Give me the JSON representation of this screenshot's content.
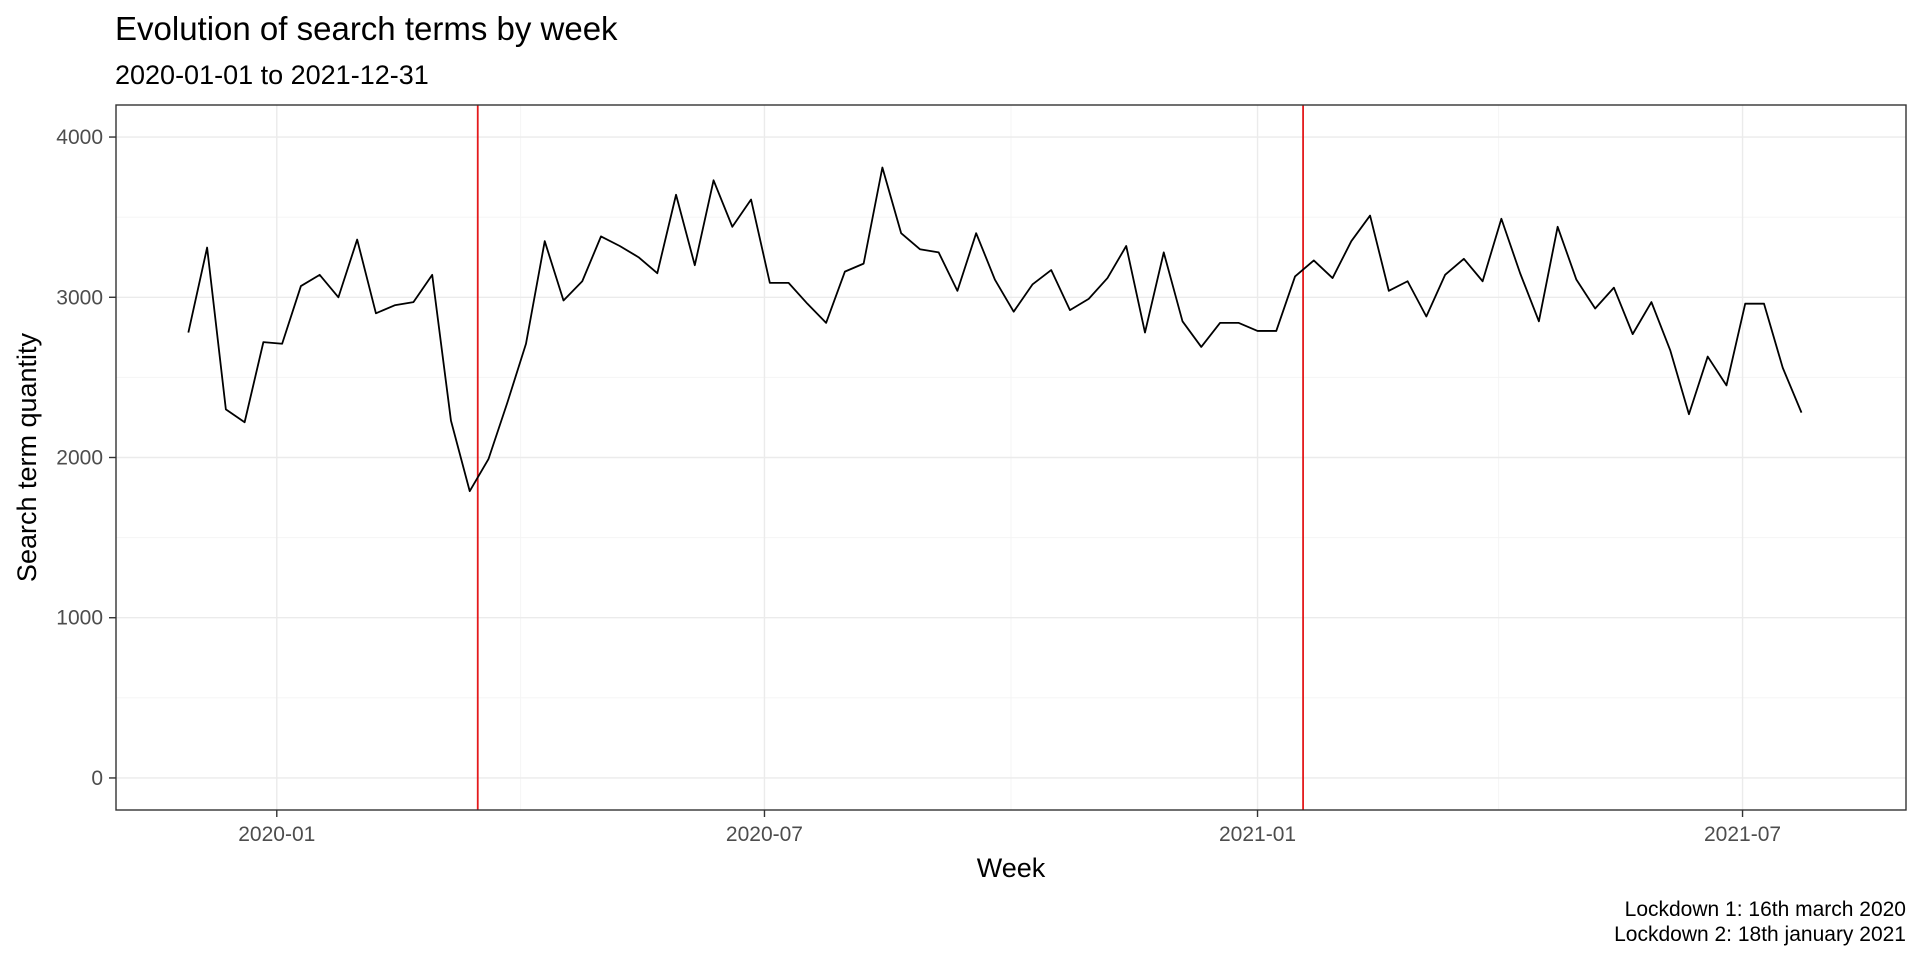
{
  "chart_data": {
    "type": "line",
    "title": "Evolution of search terms by week",
    "subtitle": "2020-01-01 to 2021-12-31",
    "xlabel": "Week",
    "ylabel": "Search term quantity",
    "caption": [
      "Lockdown 1: 16th march 2020",
      "Lockdown 2: 18th january 2021"
    ],
    "xlim": [
      "2019-11-02",
      "2021-08-31"
    ],
    "ylim": [
      -200,
      4200
    ],
    "x_ticks": [
      {
        "value": "2020-01-01",
        "label": "2020-01"
      },
      {
        "value": "2020-07-01",
        "label": "2020-07"
      },
      {
        "value": "2021-01-01",
        "label": "2021-01"
      },
      {
        "value": "2021-07-01",
        "label": "2021-07"
      }
    ],
    "x_minor_ticks": [
      "2020-04-01",
      "2020-10-01",
      "2021-04-01"
    ],
    "y_ticks": [
      {
        "value": 0,
        "label": "0"
      },
      {
        "value": 1000,
        "label": "1000"
      },
      {
        "value": 2000,
        "label": "2000"
      },
      {
        "value": 3000,
        "label": "3000"
      },
      {
        "value": 4000,
        "label": "4000"
      }
    ],
    "y_minor_ticks": [
      500,
      1500,
      2500,
      3500
    ],
    "grid": true,
    "reference_lines": [
      {
        "x": "2020-03-16",
        "color": "#e41a1c"
      },
      {
        "x": "2021-01-18",
        "color": "#e41a1c"
      }
    ],
    "series": [
      {
        "color": "#000000",
        "points": [
          [
            "2019-11-29",
            2780
          ],
          [
            "2019-12-06",
            3310
          ],
          [
            "2019-12-13",
            2300
          ],
          [
            "2019-12-20",
            2220
          ],
          [
            "2019-12-27",
            2720
          ],
          [
            "2020-01-03",
            2710
          ],
          [
            "2020-01-10",
            3070
          ],
          [
            "2020-01-17",
            3140
          ],
          [
            "2020-01-24",
            3000
          ],
          [
            "2020-01-31",
            3360
          ],
          [
            "2020-02-07",
            2900
          ],
          [
            "2020-02-14",
            2950
          ],
          [
            "2020-02-21",
            2970
          ],
          [
            "2020-02-28",
            3140
          ],
          [
            "2020-03-06",
            2230
          ],
          [
            "2020-03-13",
            1790
          ],
          [
            "2020-03-20",
            1990
          ],
          [
            "2020-03-27",
            2340
          ],
          [
            "2020-04-03",
            2710
          ],
          [
            "2020-04-10",
            3350
          ],
          [
            "2020-04-17",
            2980
          ],
          [
            "2020-04-24",
            3100
          ],
          [
            "2020-05-01",
            3380
          ],
          [
            "2020-05-08",
            3320
          ],
          [
            "2020-05-15",
            3250
          ],
          [
            "2020-05-22",
            3150
          ],
          [
            "2020-05-29",
            3640
          ],
          [
            "2020-06-05",
            3200
          ],
          [
            "2020-06-12",
            3730
          ],
          [
            "2020-06-19",
            3440
          ],
          [
            "2020-06-26",
            3610
          ],
          [
            "2020-07-03",
            3090
          ],
          [
            "2020-07-10",
            3090
          ],
          [
            "2020-07-17",
            2960
          ],
          [
            "2020-07-24",
            2840
          ],
          [
            "2020-07-31",
            3160
          ],
          [
            "2020-08-07",
            3210
          ],
          [
            "2020-08-14",
            3810
          ],
          [
            "2020-08-21",
            3400
          ],
          [
            "2020-08-28",
            3300
          ],
          [
            "2020-09-04",
            3280
          ],
          [
            "2020-09-11",
            3040
          ],
          [
            "2020-09-18",
            3400
          ],
          [
            "2020-09-25",
            3110
          ],
          [
            "2020-10-02",
            2910
          ],
          [
            "2020-10-09",
            3080
          ],
          [
            "2020-10-16",
            3170
          ],
          [
            "2020-10-23",
            2920
          ],
          [
            "2020-10-30",
            2990
          ],
          [
            "2020-11-06",
            3120
          ],
          [
            "2020-11-13",
            3320
          ],
          [
            "2020-11-20",
            2780
          ],
          [
            "2020-11-27",
            3280
          ],
          [
            "2020-12-04",
            2850
          ],
          [
            "2020-12-11",
            2690
          ],
          [
            "2020-12-18",
            2840
          ],
          [
            "2020-12-25",
            2840
          ],
          [
            "2021-01-01",
            2790
          ],
          [
            "2021-01-08",
            2790
          ],
          [
            "2021-01-15",
            3130
          ],
          [
            "2021-01-22",
            3230
          ],
          [
            "2021-01-29",
            3120
          ],
          [
            "2021-02-05",
            3350
          ],
          [
            "2021-02-12",
            3510
          ],
          [
            "2021-02-19",
            3040
          ],
          [
            "2021-02-26",
            3100
          ],
          [
            "2021-03-05",
            2880
          ],
          [
            "2021-03-12",
            3140
          ],
          [
            "2021-03-19",
            3240
          ],
          [
            "2021-03-26",
            3100
          ],
          [
            "2021-04-02",
            3490
          ],
          [
            "2021-04-09",
            3150
          ],
          [
            "2021-04-16",
            2850
          ],
          [
            "2021-04-23",
            3440
          ],
          [
            "2021-04-30",
            3110
          ],
          [
            "2021-05-07",
            2930
          ],
          [
            "2021-05-14",
            3060
          ],
          [
            "2021-05-21",
            2770
          ],
          [
            "2021-05-28",
            2970
          ],
          [
            "2021-06-04",
            2670
          ],
          [
            "2021-06-11",
            2270
          ],
          [
            "2021-06-18",
            2630
          ],
          [
            "2021-06-25",
            2450
          ],
          [
            "2021-07-02",
            2960
          ],
          [
            "2021-07-09",
            2960
          ],
          [
            "2021-07-16",
            2560
          ],
          [
            "2021-07-23",
            2280
          ]
        ]
      }
    ]
  }
}
